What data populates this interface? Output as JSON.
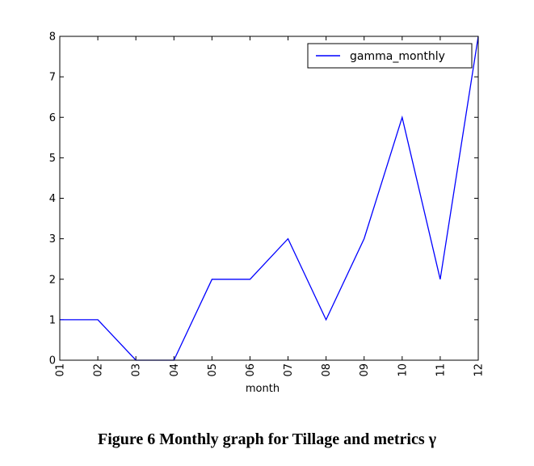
{
  "chart_data": {
    "type": "line",
    "categories": [
      "01",
      "02",
      "03",
      "04",
      "05",
      "06",
      "07",
      "08",
      "09",
      "10",
      "11",
      "12"
    ],
    "series": [
      {
        "name": "gamma_monthly",
        "values": [
          1,
          1,
          0,
          0,
          2,
          2,
          3,
          1,
          3,
          6,
          2,
          8
        ],
        "color": "#0000ff"
      }
    ],
    "xlabel": "month",
    "ylabel": "",
    "ylim": [
      0,
      8
    ],
    "yticks": [
      0,
      1,
      2,
      3,
      4,
      5,
      6,
      7,
      8
    ],
    "legend": "top-right",
    "grid": false
  },
  "caption": "Figure 6 Monthly graph for Tillage and metrics γ"
}
